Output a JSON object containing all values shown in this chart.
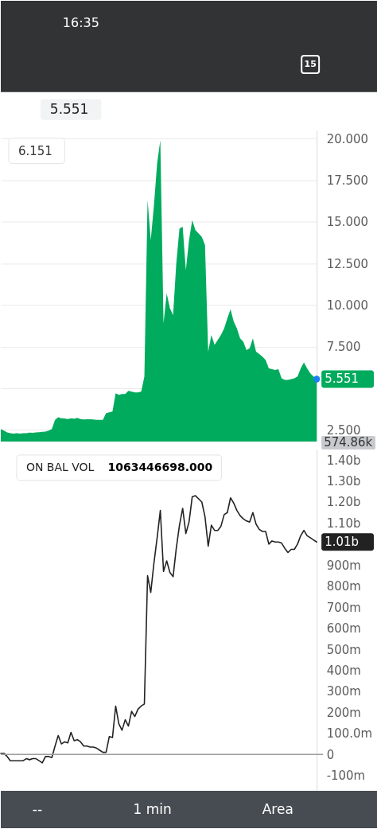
{
  "chart_data": [
    {
      "type": "other",
      "annotations": [
        "16:35",
        "15",
        "5.551"
      ]
    },
    {
      "type": "area",
      "categories": [
        null,
        null,
        null,
        null,
        null,
        null,
        null,
        null,
        null,
        null,
        null,
        null,
        null,
        null,
        null,
        null,
        null,
        null,
        null,
        null,
        null,
        null,
        null,
        null,
        null,
        null,
        null,
        null,
        null,
        null,
        null,
        null,
        null,
        null,
        null,
        null,
        null,
        null,
        null,
        null,
        null,
        null,
        null,
        null,
        null,
        null,
        null,
        null,
        null,
        null,
        null,
        null,
        null,
        null,
        null,
        null,
        null,
        null,
        null,
        null,
        null,
        null,
        null,
        null,
        null,
        null,
        null,
        null,
        null,
        null,
        null,
        null,
        null,
        null,
        null,
        null,
        null,
        null,
        null,
        null,
        null,
        null,
        null,
        null,
        null,
        null,
        null,
        null,
        null,
        null,
        null,
        null,
        null,
        null,
        null,
        null,
        null,
        null,
        null,
        null
      ],
      "series": [
        {
          "color": "#00ab5e",
          "values": [
            2.55,
            2.45,
            2.35,
            2.3,
            2.28,
            2.3,
            2.27,
            2.3,
            2.3,
            2.33,
            2.32,
            2.35,
            2.36,
            2.38,
            2.4,
            2.45,
            2.55,
            3.1,
            3.25,
            3.2,
            3.18,
            3.15,
            3.2,
            3.17,
            3.22,
            3.15,
            3.12,
            3.13,
            3.13,
            3.12,
            3.1,
            3.1,
            3.1,
            3.5,
            3.55,
            3.6,
            4.7,
            4.6,
            4.65,
            4.65,
            4.85,
            4.8,
            4.75,
            4.75,
            4.8,
            5.7,
            16.3,
            13.9,
            16.0,
            18.5,
            19.9,
            8.9,
            10.7,
            9.8,
            9.4,
            12.5,
            14.6,
            14.7,
            12.1,
            13.9,
            15.1,
            14.5,
            14.3,
            14.1,
            13.6,
            7.2,
            8.2,
            7.6,
            7.9,
            8.2,
            8.6,
            9.2,
            9.75,
            9.0,
            8.6,
            8.0,
            7.8,
            7.3,
            7.4,
            8.0,
            7.2,
            7.05,
            6.9,
            6.7,
            6.2,
            6.15,
            6.1,
            6.15,
            5.6,
            5.5,
            5.5,
            5.55,
            5.6,
            5.7,
            6.2,
            6.55,
            6.2,
            5.9,
            5.7,
            5.551
          ]
        }
      ],
      "ylim": [
        1.8,
        20.5
      ],
      "yticks": [
        {
          "value": 2.5,
          "label": "2.500"
        },
        {
          "value": 5,
          "label": null
        },
        {
          "value": 7.5,
          "label": "7.500"
        },
        {
          "value": 10,
          "label": "10.000"
        },
        {
          "value": 12.5,
          "label": "12.500"
        },
        {
          "value": 15,
          "label": "15.000"
        },
        {
          "value": 17.5,
          "label": "17.500"
        },
        {
          "value": 20,
          "label": "20.000"
        }
      ],
      "tick_labels": "y",
      "grid": "y",
      "annotations": [
        "6.151",
        "5.551",
        "574.86k"
      ]
    },
    {
      "type": "line",
      "categories": [
        null,
        null,
        null,
        null,
        null,
        null,
        null,
        null,
        null,
        null,
        null,
        null,
        null,
        null,
        null,
        null,
        null,
        null,
        null,
        null,
        null,
        null,
        null,
        null,
        null,
        null,
        null,
        null,
        null,
        null,
        null,
        null,
        null,
        null,
        null,
        null,
        null,
        null,
        null,
        null,
        null,
        null,
        null,
        null,
        null,
        null,
        null,
        null,
        null,
        null,
        null,
        null,
        null,
        null,
        null,
        null,
        null,
        null,
        null,
        null,
        null,
        null,
        null,
        null,
        null,
        null,
        null,
        null,
        null,
        null,
        null,
        null,
        null,
        null,
        null,
        null,
        null,
        null,
        null,
        null,
        null,
        null,
        null,
        null,
        null,
        null,
        null,
        null,
        null,
        null,
        null,
        null,
        null,
        null,
        null,
        null,
        null,
        null,
        null,
        null
      ],
      "series": [
        {
          "name": "ON BAL VOL",
          "color": "#222222",
          "values": [
            5000000,
            5000000,
            -10000000,
            -30000000,
            -30000000,
            -30000000,
            -30000000,
            -30000000,
            -20000000,
            -25000000,
            -20000000,
            -20000000,
            -30000000,
            -40000000,
            -10000000,
            -10000000,
            -15000000,
            40000000,
            90000000,
            50000000,
            60000000,
            55000000,
            105000000,
            65000000,
            70000000,
            60000000,
            40000000,
            40000000,
            35000000,
            35000000,
            30000000,
            20000000,
            10000000,
            10000000,
            85000000,
            80000000,
            230000000,
            145000000,
            115000000,
            165000000,
            135000000,
            205000000,
            180000000,
            215000000,
            230000000,
            240000000,
            850000000,
            770000000,
            910000000,
            1030000000,
            1160000000,
            870000000,
            920000000,
            865000000,
            845000000,
            980000000,
            1090000000,
            1170000000,
            1050000000,
            1105000000,
            1225000000,
            1230000000,
            1215000000,
            1200000000,
            1130000000,
            990000000,
            1090000000,
            1065000000,
            1065000000,
            1085000000,
            1140000000,
            1150000000,
            1220000000,
            1195000000,
            1160000000,
            1135000000,
            1120000000,
            1110000000,
            1105000000,
            1150000000,
            1095000000,
            1070000000,
            1060000000,
            1060000000,
            1000000000,
            1015000000,
            1010000000,
            1010000000,
            1005000000,
            980000000,
            960000000,
            975000000,
            975000000,
            1000000000,
            1040000000,
            1065000000,
            1040000000,
            1030000000,
            1020000000,
            1010000000
          ]
        }
      ],
      "ylim": [
        -173000000,
        1450000000
      ],
      "yticks": [
        {
          "value": -100000000,
          "label": "-100m"
        },
        0,
        {
          "value": 100000000,
          "label": "100.0m"
        },
        {
          "value": 200000000,
          "label": "200m"
        },
        {
          "value": 300000000,
          "label": "300m"
        },
        {
          "value": 400000000,
          "label": "400m"
        },
        {
          "value": 500000000,
          "label": "500m"
        },
        {
          "value": 600000000,
          "label": "600m"
        },
        {
          "value": 700000000,
          "label": "700m"
        },
        {
          "value": 800000000,
          "label": "800m"
        },
        {
          "value": 900000000,
          "label": "900m"
        },
        {
          "value": 1100000000,
          "label": "1.10b"
        },
        {
          "value": 1200000000,
          "label": "1.20b"
        },
        {
          "value": 1300000000,
          "label": "1.30b"
        },
        {
          "value": 1400000000,
          "label": "1.40b"
        }
      ],
      "tick_labels": "y",
      "legend": "top left",
      "ref_lines": [
        {
          "axis": "y",
          "value": 0,
          "color": "#9e9e9e"
        }
      ],
      "annotations": [
        "1063446698.000",
        "1.01b"
      ]
    },
    {
      "type": "other",
      "annotations": [
        "--",
        "1 min",
        "Area"
      ]
    }
  ]
}
